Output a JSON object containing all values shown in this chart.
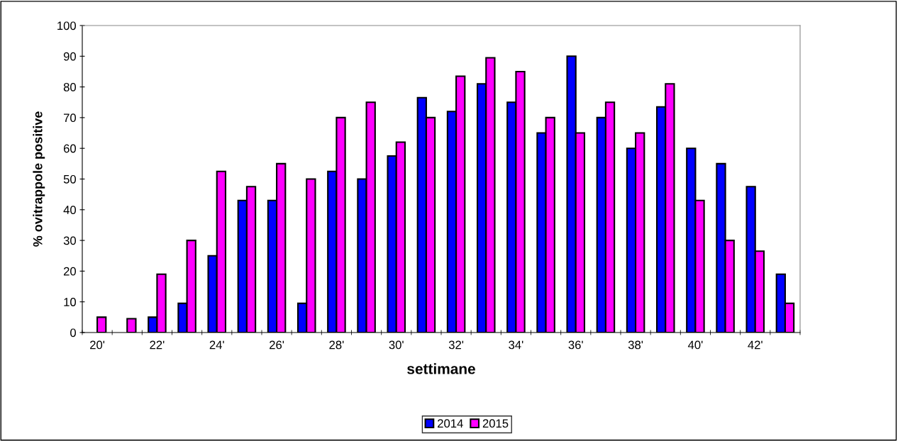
{
  "chart_data": {
    "type": "bar",
    "xlabel": "settimane",
    "ylabel": "% ovitrappole positive",
    "categories": [
      "20'",
      null,
      "22'",
      null,
      "24'",
      null,
      "26'",
      null,
      "28'",
      null,
      "30'",
      null,
      "32'",
      null,
      "34'",
      null,
      "36'",
      null,
      "38'",
      null,
      "40'",
      null,
      "42'",
      null
    ],
    "series": [
      {
        "name": "2014",
        "color": "#0000ff",
        "values": [
          null,
          null,
          5,
          9.5,
          25,
          43,
          43,
          9.5,
          52.5,
          50,
          57.5,
          76.5,
          72,
          81,
          75,
          65,
          90,
          70,
          60,
          73.5,
          60,
          55,
          47.5,
          19
        ]
      },
      {
        "name": "2015",
        "color": "#ff00ff",
        "values": [
          5,
          4.5,
          19,
          30,
          52.5,
          47.5,
          55,
          50,
          70,
          75,
          62,
          70,
          83.5,
          89.5,
          85,
          70,
          65,
          75,
          65,
          81,
          43,
          30,
          26.5,
          9.5
        ]
      }
    ],
    "ylim": [
      0,
      100
    ],
    "yticks": [
      0,
      10,
      20,
      30,
      40,
      50,
      60,
      70,
      80,
      90,
      100
    ],
    "grid": false,
    "legend": "bottom"
  }
}
